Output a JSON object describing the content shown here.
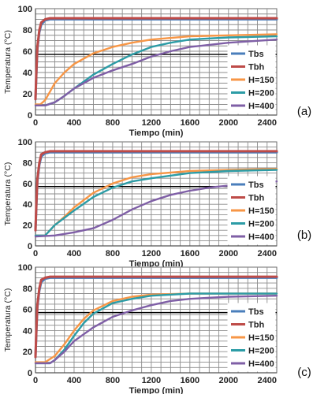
{
  "colors": {
    "Tbs": "#4a7ebb",
    "Tbh": "#be4b48",
    "H=150": "#f79646",
    "H=200": "#2c9ca6",
    "H=400": "#7f5fa6",
    "grid": "#8c8c8c",
    "reference_line": "#000000"
  },
  "chart_data": [
    {
      "type": "line",
      "panel_label": "(a)",
      "xlabel": "Tiempo (min)",
      "ylabel": "Temperatura (°C)",
      "xlim": [
        0,
        2500
      ],
      "ylim": [
        0,
        100
      ],
      "x_ticks": [
        0,
        400,
        800,
        1200,
        1600,
        2000,
        2400
      ],
      "y_ticks": [
        0,
        20,
        40,
        60,
        80,
        100
      ],
      "grid": true,
      "legend_position": "right",
      "reference_line": {
        "y": 57
      },
      "series": [
        {
          "name": "Tbs",
          "x": [
            0,
            10,
            20,
            40,
            60,
            100,
            150,
            200,
            400,
            800,
            1200,
            1600,
            2000,
            2500
          ],
          "y": [
            15,
            40,
            62,
            78,
            85,
            89,
            90,
            90,
            90,
            90,
            90,
            90,
            90,
            90
          ]
        },
        {
          "name": "Tbh",
          "x": [
            0,
            10,
            20,
            40,
            60,
            100,
            150,
            200,
            400,
            800,
            1200,
            1600,
            2000,
            2500
          ],
          "y": [
            15,
            42,
            64,
            80,
            87,
            90,
            91,
            91,
            91,
            91,
            91,
            91,
            91,
            91
          ]
        },
        {
          "name": "H=150",
          "x": [
            0,
            50,
            100,
            150,
            200,
            300,
            400,
            600,
            800,
            1000,
            1200,
            1600,
            2000,
            2500
          ],
          "y": [
            10,
            10,
            14,
            22,
            30,
            40,
            48,
            58,
            64,
            68,
            71,
            74,
            75,
            76
          ]
        },
        {
          "name": "H=200",
          "x": [
            0,
            100,
            200,
            300,
            400,
            600,
            800,
            1000,
            1200,
            1400,
            1600,
            2000,
            2500
          ],
          "y": [
            9,
            9,
            12,
            18,
            25,
            38,
            48,
            57,
            64,
            68,
            71,
            73,
            74
          ]
        },
        {
          "name": "H=400",
          "x": [
            0,
            100,
            200,
            300,
            400,
            600,
            800,
            1000,
            1200,
            1400,
            1600,
            2000,
            2500
          ],
          "y": [
            9,
            9,
            12,
            18,
            25,
            35,
            42,
            48,
            55,
            60,
            64,
            68,
            71
          ]
        }
      ]
    },
    {
      "type": "line",
      "panel_label": "(b)",
      "xlabel": "Tiempo (min)",
      "ylabel": "Temperatura (°C)",
      "xlim": [
        0,
        2500
      ],
      "ylim": [
        0,
        100
      ],
      "x_ticks": [
        0,
        400,
        800,
        1200,
        1600,
        2000,
        2400
      ],
      "y_ticks": [
        0,
        20,
        40,
        60,
        80,
        100
      ],
      "grid": true,
      "legend_position": "right",
      "reference_line": {
        "y": 57
      },
      "series": [
        {
          "name": "Tbs",
          "x": [
            0,
            10,
            20,
            40,
            60,
            100,
            150,
            200,
            400,
            800,
            1200,
            1600,
            2000,
            2500
          ],
          "y": [
            15,
            40,
            62,
            78,
            86,
            89,
            90,
            90,
            90,
            90,
            90,
            90,
            90,
            90
          ]
        },
        {
          "name": "Tbh",
          "x": [
            0,
            10,
            20,
            40,
            60,
            100,
            150,
            200,
            400,
            800,
            1200,
            1600,
            2000,
            2500
          ],
          "y": [
            15,
            42,
            64,
            80,
            88,
            90,
            91,
            91,
            91,
            91,
            91,
            91,
            91,
            91
          ]
        },
        {
          "name": "H=150",
          "x": [
            0,
            100,
            150,
            200,
            300,
            400,
            600,
            800,
            1000,
            1200,
            1600,
            2000,
            2500
          ],
          "y": [
            10,
            10,
            15,
            20,
            28,
            37,
            51,
            60,
            66,
            69,
            72,
            73,
            74
          ]
        },
        {
          "name": "H=200",
          "x": [
            0,
            100,
            150,
            200,
            300,
            400,
            600,
            800,
            1000,
            1200,
            1600,
            2000,
            2500
          ],
          "y": [
            10,
            10,
            15,
            20,
            27,
            34,
            47,
            56,
            62,
            65,
            70,
            72,
            73
          ]
        },
        {
          "name": "H=400",
          "x": [
            0,
            200,
            400,
            600,
            800,
            1000,
            1200,
            1400,
            1600,
            1800,
            2000,
            2200,
            2500
          ],
          "y": [
            9,
            10,
            13,
            17,
            25,
            35,
            43,
            49,
            53,
            56,
            58,
            60,
            62
          ]
        }
      ]
    },
    {
      "type": "line",
      "panel_label": "(c)",
      "xlabel": "Tiempo (min)",
      "ylabel": "Temperatura (°C)",
      "xlim": [
        0,
        2500
      ],
      "ylim": [
        0,
        100
      ],
      "x_ticks": [
        0,
        400,
        800,
        1200,
        1600,
        2000,
        2400
      ],
      "y_ticks": [
        0,
        20,
        40,
        60,
        80,
        100
      ],
      "grid": true,
      "legend_position": "right",
      "reference_line": {
        "y": 57
      },
      "series": [
        {
          "name": "Tbs",
          "x": [
            0,
            10,
            20,
            40,
            60,
            100,
            150,
            200,
            400,
            800,
            1200,
            1600,
            2000,
            2500
          ],
          "y": [
            15,
            40,
            62,
            78,
            86,
            89,
            90,
            90,
            90,
            90,
            90,
            90,
            90,
            90
          ]
        },
        {
          "name": "Tbh",
          "x": [
            0,
            10,
            20,
            40,
            60,
            100,
            150,
            200,
            400,
            800,
            1200,
            1600,
            2000,
            2500
          ],
          "y": [
            15,
            42,
            64,
            80,
            88,
            90,
            91,
            91,
            91,
            91,
            91,
            91,
            91,
            91
          ]
        },
        {
          "name": "H=150",
          "x": [
            0,
            100,
            200,
            300,
            400,
            500,
            600,
            800,
            1000,
            1200,
            1600,
            2000,
            2500
          ],
          "y": [
            10,
            10,
            16,
            27,
            40,
            51,
            59,
            68,
            72,
            74,
            75,
            75,
            75
          ]
        },
        {
          "name": "H=200",
          "x": [
            0,
            150,
            200,
            300,
            400,
            500,
            600,
            800,
            1000,
            1200,
            1600,
            2000,
            2500
          ],
          "y": [
            9,
            9,
            12,
            22,
            35,
            47,
            56,
            66,
            70,
            73,
            75,
            75,
            75
          ]
        },
        {
          "name": "H=400",
          "x": [
            0,
            150,
            200,
            300,
            400,
            600,
            800,
            1000,
            1200,
            1400,
            1600,
            2000,
            2500
          ],
          "y": [
            9,
            9,
            12,
            20,
            30,
            43,
            53,
            59,
            64,
            68,
            70,
            72,
            73
          ]
        }
      ]
    }
  ]
}
